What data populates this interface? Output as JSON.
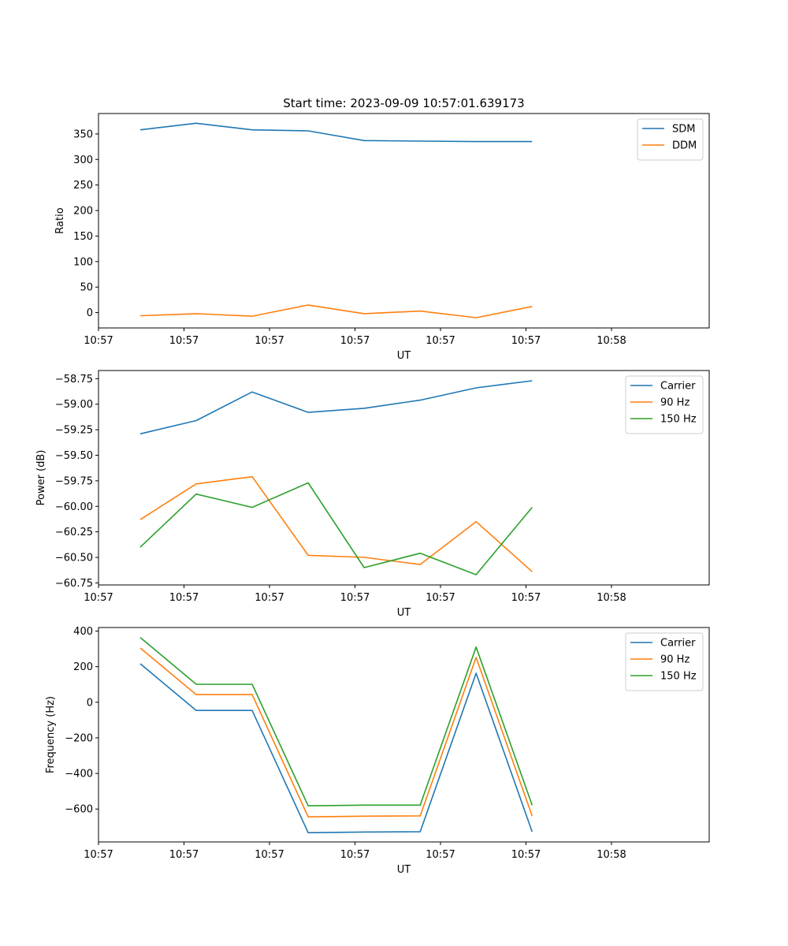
{
  "figure": {
    "background": "#ffffff"
  },
  "colors": {
    "c0": "#1f77b4",
    "c1": "#ff7f0e",
    "c2": "#2ca02c"
  },
  "chart_data": [
    {
      "type": "line",
      "title": "Start time: 2023-09-09 10:57:01.639173",
      "xlabel": "UT",
      "ylabel": "Ratio",
      "xlim": [
        0,
        6
      ],
      "ylim": [
        -30,
        390
      ],
      "xticks": [
        {
          "pos": 0.0,
          "label": "10:57"
        },
        {
          "pos": 0.84,
          "label": "10:57"
        },
        {
          "pos": 1.68,
          "label": "10:57"
        },
        {
          "pos": 2.52,
          "label": "10:57"
        },
        {
          "pos": 3.36,
          "label": "10:57"
        },
        {
          "pos": 4.2,
          "label": "10:57"
        },
        {
          "pos": 5.04,
          "label": "10:58"
        }
      ],
      "yticks": [
        {
          "v": 0,
          "label": "0"
        },
        {
          "v": 50,
          "label": "50"
        },
        {
          "v": 100,
          "label": "100"
        },
        {
          "v": 150,
          "label": "150"
        },
        {
          "v": 200,
          "label": "200"
        },
        {
          "v": 250,
          "label": "250"
        },
        {
          "v": 300,
          "label": "300"
        },
        {
          "v": 350,
          "label": "350"
        }
      ],
      "x": [
        0.41,
        0.96,
        1.51,
        2.06,
        2.61,
        3.16,
        3.71,
        4.26
      ],
      "series": [
        {
          "name": "SDM",
          "color": "#1f77b4",
          "values": [
            358,
            371,
            358,
            356,
            337,
            336,
            335,
            335
          ]
        },
        {
          "name": "DDM",
          "color": "#ff7f0e",
          "values": [
            -6,
            -2,
            -7,
            15,
            -2,
            3,
            -10,
            12
          ]
        }
      ],
      "legend": "top-right"
    },
    {
      "type": "line",
      "xlabel": "UT",
      "ylabel": "Power (dB)",
      "xlim": [
        0,
        6
      ],
      "ylim": [
        -60.77,
        -58.67
      ],
      "xticks": [
        {
          "pos": 0.0,
          "label": "10:57"
        },
        {
          "pos": 0.84,
          "label": "10:57"
        },
        {
          "pos": 1.68,
          "label": "10:57"
        },
        {
          "pos": 2.52,
          "label": "10:57"
        },
        {
          "pos": 3.36,
          "label": "10:57"
        },
        {
          "pos": 4.2,
          "label": "10:57"
        },
        {
          "pos": 5.04,
          "label": "10:58"
        }
      ],
      "yticks": [
        {
          "v": -60.75,
          "label": "−60.75"
        },
        {
          "v": -60.5,
          "label": "−60.50"
        },
        {
          "v": -60.25,
          "label": "−60.25"
        },
        {
          "v": -60.0,
          "label": "−60.00"
        },
        {
          "v": -59.75,
          "label": "−59.75"
        },
        {
          "v": -59.5,
          "label": "−59.50"
        },
        {
          "v": -59.25,
          "label": "−59.25"
        },
        {
          "v": -59.0,
          "label": "−59.00"
        },
        {
          "v": -58.75,
          "label": "−58.75"
        }
      ],
      "x": [
        0.41,
        0.96,
        1.51,
        2.06,
        2.61,
        3.16,
        3.71,
        4.26
      ],
      "series": [
        {
          "name": "Carrier",
          "color": "#1f77b4",
          "values": [
            -59.29,
            -59.16,
            -58.88,
            -59.08,
            -59.04,
            -58.96,
            -58.84,
            -58.77
          ]
        },
        {
          "name": "90 Hz",
          "color": "#ff7f0e",
          "values": [
            -60.13,
            -59.78,
            -59.71,
            -60.48,
            -60.5,
            -60.57,
            -60.15,
            -60.64
          ]
        },
        {
          "name": "150 Hz",
          "color": "#2ca02c",
          "values": [
            -60.4,
            -59.88,
            -60.01,
            -59.77,
            -60.6,
            -60.46,
            -60.67,
            -60.01
          ]
        }
      ],
      "legend": "top-right"
    },
    {
      "type": "line",
      "xlabel": "UT",
      "ylabel": "Frequency (Hz)",
      "xlim": [
        0,
        6
      ],
      "ylim": [
        -785,
        420
      ],
      "xticks": [
        {
          "pos": 0.0,
          "label": "10:57"
        },
        {
          "pos": 0.84,
          "label": "10:57"
        },
        {
          "pos": 1.68,
          "label": "10:57"
        },
        {
          "pos": 2.52,
          "label": "10:57"
        },
        {
          "pos": 3.36,
          "label": "10:57"
        },
        {
          "pos": 4.2,
          "label": "10:57"
        },
        {
          "pos": 5.04,
          "label": "10:58"
        }
      ],
      "yticks": [
        {
          "v": -600,
          "label": "−600"
        },
        {
          "v": -400,
          "label": "−400"
        },
        {
          "v": -200,
          "label": "−200"
        },
        {
          "v": 0,
          "label": "0"
        },
        {
          "v": 200,
          "label": "200"
        },
        {
          "v": 400,
          "label": "400"
        }
      ],
      "x": [
        0.41,
        0.96,
        1.51,
        2.06,
        2.61,
        3.16,
        3.71,
        4.26
      ],
      "series": [
        {
          "name": "Carrier",
          "color": "#1f77b4",
          "values": [
            216,
            -46,
            -46,
            -733,
            -729,
            -728,
            163,
            -728
          ]
        },
        {
          "name": "90 Hz",
          "color": "#ff7f0e",
          "values": [
            305,
            43,
            43,
            -644,
            -640,
            -639,
            252,
            -639
          ]
        },
        {
          "name": "150 Hz",
          "color": "#2ca02c",
          "values": [
            364,
            101,
            101,
            -582,
            -578,
            -578,
            310,
            -578
          ]
        }
      ],
      "legend": "top-right"
    }
  ]
}
